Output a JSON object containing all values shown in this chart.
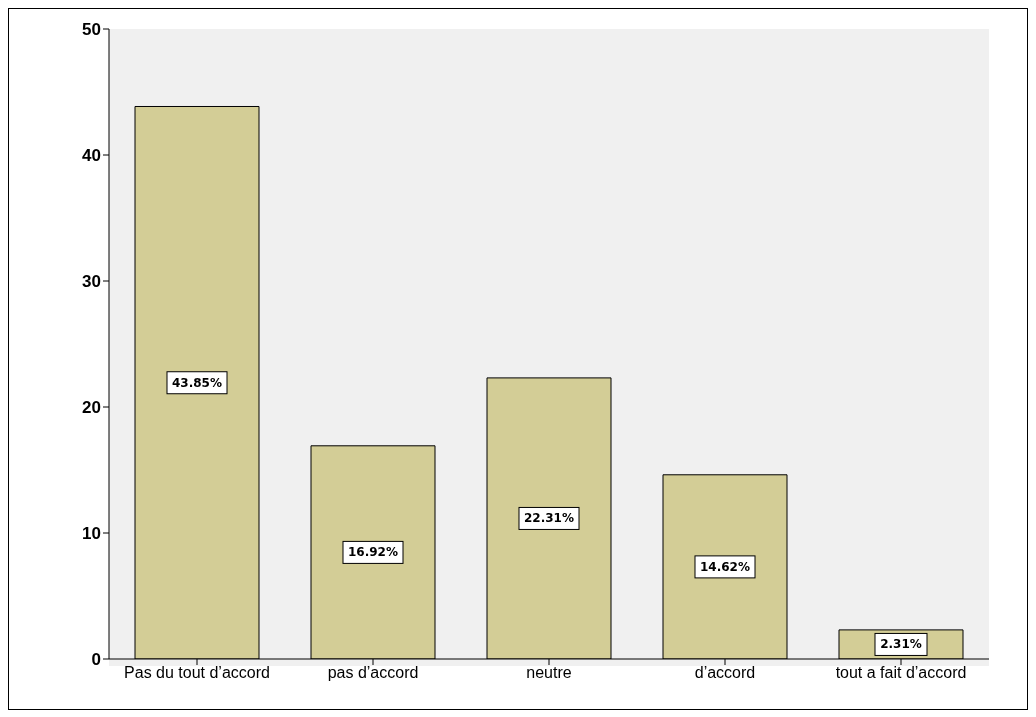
{
  "chart_data": {
    "type": "bar",
    "categories": [
      "Pas du tout d’accord",
      "pas d’accord",
      "neutre",
      "d’accord",
      "tout a fait d’accord"
    ],
    "values": [
      43.85,
      16.92,
      22.31,
      14.62,
      2.31
    ],
    "value_labels": [
      "43.85%",
      "16.92%",
      "22.31%",
      "14.62%",
      "2.31%"
    ],
    "color": "#d3cd96",
    "ylim": [
      0,
      50
    ],
    "yticks": [
      0,
      10,
      20,
      30,
      40,
      50
    ],
    "grid": false,
    "legend": false
  }
}
